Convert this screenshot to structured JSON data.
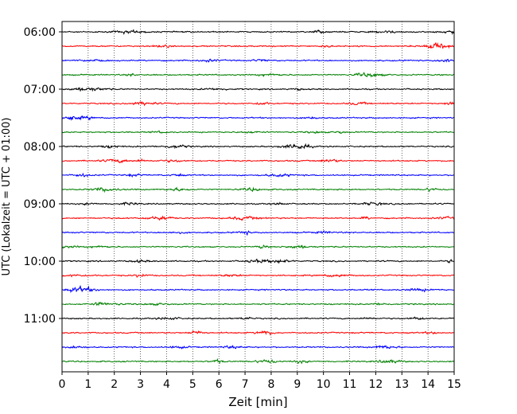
{
  "chart_data": {
    "type": "line",
    "title": "",
    "xlabel": "Zeit  [min]",
    "ylabel": "UTC (Lokalzeit = UTC + 01:00)",
    "xlim": [
      0,
      15
    ],
    "x_ticks": [
      "0",
      "1",
      "2",
      "3",
      "4",
      "5",
      "6",
      "7",
      "8",
      "9",
      "10",
      "11",
      "12",
      "13",
      "14",
      "15"
    ],
    "y_tick_labels": [
      "06:00",
      "07:00",
      "08:00",
      "09:00",
      "10:00",
      "11:00"
    ],
    "grid": "vertical-dotted",
    "legend": "none",
    "trace_interval_min": 15,
    "trace_start_utc": "06:00",
    "trace_count": 24,
    "trace_colors": [
      "#000000",
      "#ff0000",
      "#0000ff",
      "#008000"
    ],
    "series": [
      {
        "start": "06:00",
        "color": "#000000"
      },
      {
        "start": "06:15",
        "color": "#ff0000"
      },
      {
        "start": "06:30",
        "color": "#0000ff"
      },
      {
        "start": "06:45",
        "color": "#008000"
      },
      {
        "start": "07:00",
        "color": "#000000"
      },
      {
        "start": "07:15",
        "color": "#ff0000"
      },
      {
        "start": "07:30",
        "color": "#0000ff"
      },
      {
        "start": "07:45",
        "color": "#008000"
      },
      {
        "start": "08:00",
        "color": "#000000"
      },
      {
        "start": "08:15",
        "color": "#ff0000"
      },
      {
        "start": "08:30",
        "color": "#0000ff"
      },
      {
        "start": "08:45",
        "color": "#008000"
      },
      {
        "start": "09:00",
        "color": "#000000"
      },
      {
        "start": "09:15",
        "color": "#ff0000"
      },
      {
        "start": "09:30",
        "color": "#0000ff"
      },
      {
        "start": "09:45",
        "color": "#008000"
      },
      {
        "start": "10:00",
        "color": "#000000"
      },
      {
        "start": "10:15",
        "color": "#ff0000"
      },
      {
        "start": "10:30",
        "color": "#0000ff"
      },
      {
        "start": "10:45",
        "color": "#008000"
      },
      {
        "start": "11:00",
        "color": "#000000"
      },
      {
        "start": "11:15",
        "color": "#ff0000"
      },
      {
        "start": "11:30",
        "color": "#0000ff"
      },
      {
        "start": "11:45",
        "color": "#008000"
      }
    ]
  }
}
